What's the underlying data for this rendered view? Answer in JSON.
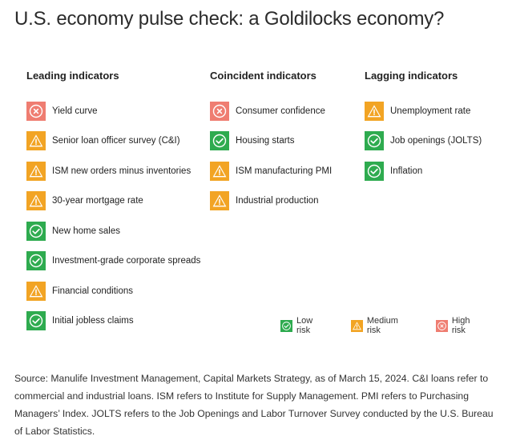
{
  "title": "U.S. economy pulse check: a Goldilocks economy?",
  "colors": {
    "low": "#2eab4f",
    "medium": "#f2a424",
    "high": "#ef7d71"
  },
  "columns": [
    {
      "heading": "Leading indicators",
      "items": [
        {
          "label": "Yield curve",
          "risk": "high",
          "icon": "x-circle-icon"
        },
        {
          "label": "Senior loan officer survey (C&I)",
          "risk": "medium",
          "icon": "warning-icon"
        },
        {
          "label": "ISM new orders minus inventories",
          "risk": "medium",
          "icon": "warning-icon"
        },
        {
          "label": "30-year mortgage rate",
          "risk": "medium",
          "icon": "warning-icon"
        },
        {
          "label": "New home sales",
          "risk": "low",
          "icon": "check-circle-icon"
        },
        {
          "label": "Investment-grade corporate spreads",
          "risk": "low",
          "icon": "check-circle-icon"
        },
        {
          "label": "Financial conditions",
          "risk": "medium",
          "icon": "warning-icon"
        },
        {
          "label": "Initial jobless claims",
          "risk": "low",
          "icon": "check-circle-icon"
        }
      ]
    },
    {
      "heading": "Coincident indicators",
      "items": [
        {
          "label": "Consumer confidence",
          "risk": "high",
          "icon": "x-circle-icon"
        },
        {
          "label": "Housing starts",
          "risk": "low",
          "icon": "check-circle-icon"
        },
        {
          "label": "ISM manufacturing PMI",
          "risk": "medium",
          "icon": "warning-icon"
        },
        {
          "label": "Industrial production",
          "risk": "medium",
          "icon": "warning-icon"
        }
      ]
    },
    {
      "heading": "Lagging indicators",
      "items": [
        {
          "label": "Unemployment rate",
          "risk": "medium",
          "icon": "warning-icon"
        },
        {
          "label": "Job openings (JOLTS)",
          "risk": "low",
          "icon": "check-circle-icon"
        },
        {
          "label": "Inflation",
          "risk": "low",
          "icon": "check-circle-icon"
        }
      ]
    }
  ],
  "legend": [
    {
      "label": "Low risk",
      "risk": "low",
      "icon": "check-circle-icon"
    },
    {
      "label": "Medium risk",
      "risk": "medium",
      "icon": "warning-icon"
    },
    {
      "label": "High risk",
      "risk": "high",
      "icon": "x-circle-icon"
    }
  ],
  "source": "Source: Manulife Investment Management, Capital Markets Strategy, as of March 15, 2024. C&I loans refer to commercial and industrial loans. ISM refers to Institute for Supply Management. PMI refers to Purchasing Managers’ Index. JOLTS refers to the Job Openings and Labor Turnover Survey conducted by the U.S. Bureau of Labor Statistics."
}
